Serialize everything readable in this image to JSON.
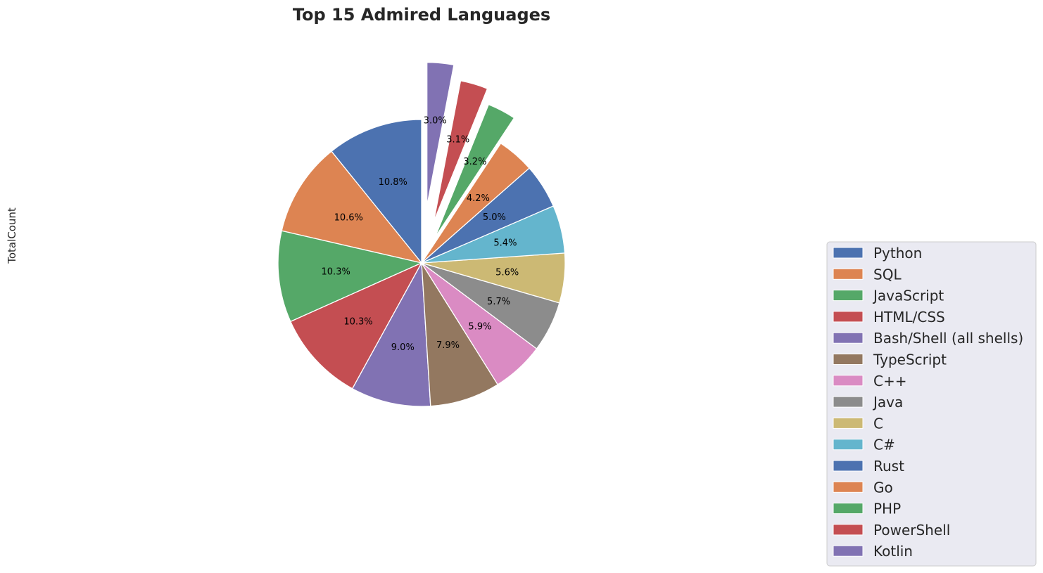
{
  "chart_data": {
    "type": "pie",
    "title": "Top 15 Admired Languages",
    "ylabel": "TotalCount",
    "legend_position": "lower-right",
    "start_direction": "vertical-up",
    "slices": [
      {
        "label": "Python",
        "value": 10.8,
        "pct_label": "10.8%",
        "color": "#4c72b0",
        "explode": 0
      },
      {
        "label": "SQL",
        "value": 10.6,
        "pct_label": "10.6%",
        "color": "#dd8452",
        "explode": 0
      },
      {
        "label": "JavaScript",
        "value": 10.3,
        "pct_label": "10.3%",
        "color": "#55a868",
        "explode": 0
      },
      {
        "label": "HTML/CSS",
        "value": 10.3,
        "pct_label": "10.3%",
        "color": "#c44e52",
        "explode": 0
      },
      {
        "label": "Bash/Shell (all shells)",
        "value": 9.0,
        "pct_label": "9.0%",
        "color": "#8172b3",
        "explode": 0
      },
      {
        "label": "TypeScript",
        "value": 7.9,
        "pct_label": "7.9%",
        "color": "#937860",
        "explode": 0
      },
      {
        "label": "C++",
        "value": 5.9,
        "pct_label": "5.9%",
        "color": "#da8bc3",
        "explode": 0
      },
      {
        "label": "Java",
        "value": 5.7,
        "pct_label": "5.7%",
        "color": "#8c8c8c",
        "explode": 0
      },
      {
        "label": "C",
        "value": 5.6,
        "pct_label": "5.6%",
        "color": "#ccb974",
        "explode": 0
      },
      {
        "label": "C#",
        "value": 5.4,
        "pct_label": "5.4%",
        "color": "#64b5cd",
        "explode": 0
      },
      {
        "label": "Rust",
        "value": 5.0,
        "pct_label": "5.0%",
        "color": "#4c72b0",
        "explode": 0
      },
      {
        "label": "Go",
        "value": 4.2,
        "pct_label": "4.2%",
        "color": "#dd8452",
        "explode": 0
      },
      {
        "label": "PHP",
        "value": 3.2,
        "pct_label": "3.2%",
        "color": "#55a868",
        "explode": 0.2
      },
      {
        "label": "PowerShell",
        "value": 3.1,
        "pct_label": "3.1%",
        "color": "#c44e52",
        "explode": 0.3
      },
      {
        "label": "Kotlin",
        "value": 3.0,
        "pct_label": "3.0%",
        "color": "#8172b3",
        "explode": 0.4
      }
    ]
  }
}
